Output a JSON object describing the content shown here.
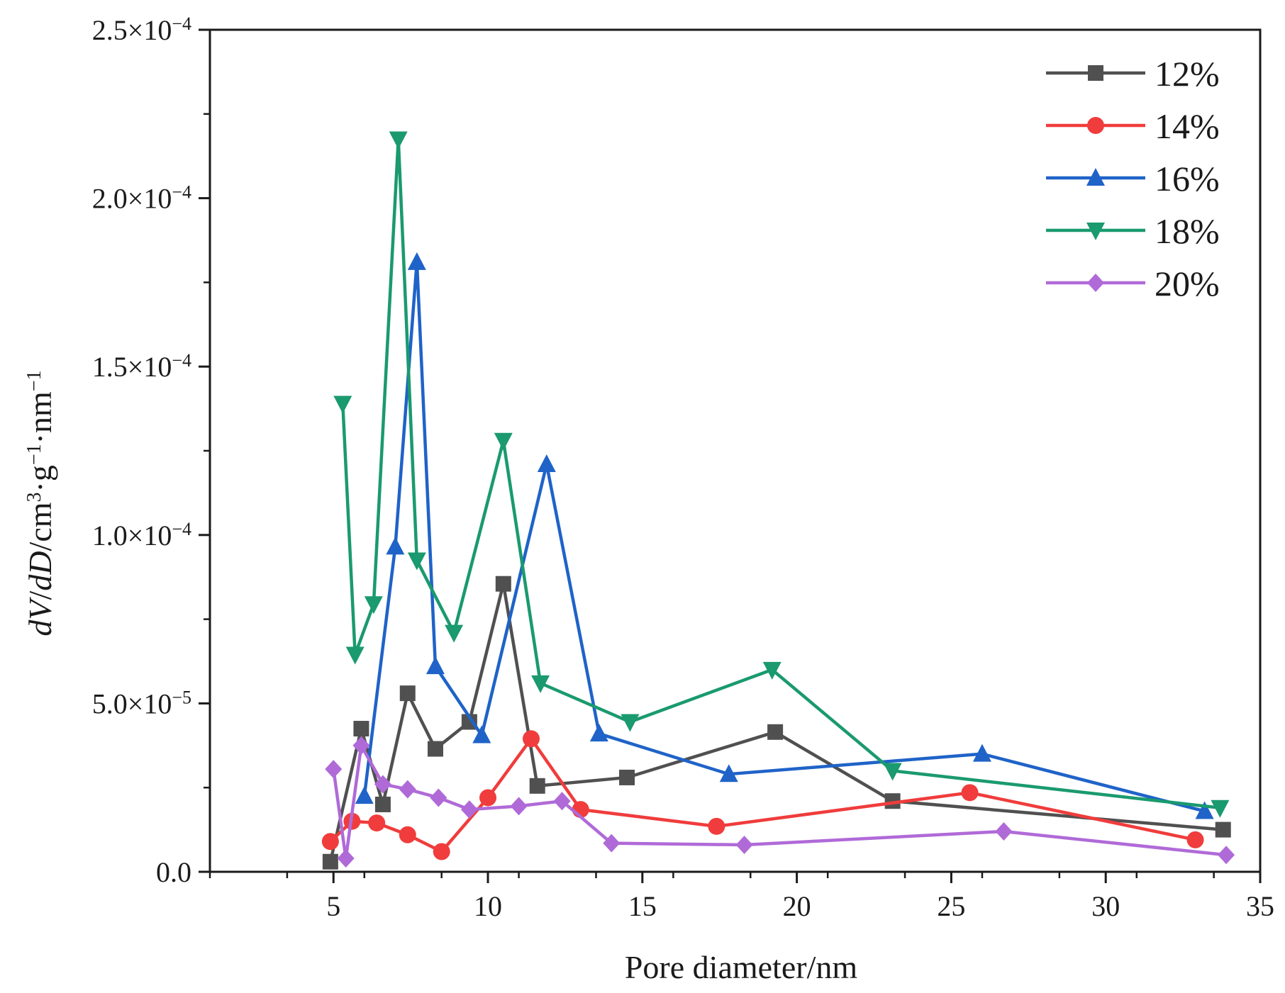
{
  "chart_data": {
    "type": "line",
    "xlabel": "Pore diameter/nm",
    "ylabel": "dV/dD/cm³·g⁻¹·nm⁻¹",
    "ylabel_parts": {
      "italic1": "dV",
      "slash1": "/",
      "italic2": "dD",
      "unit": "/cm",
      "unit_sup1": "3",
      "unit_mid": "·g",
      "unit_sup2": "−1",
      "unit_mid2": "·nm",
      "unit_sup3": "−1"
    },
    "xlim": [
      1,
      35
    ],
    "ylim": [
      0,
      0.00025
    ],
    "x_ticks": [
      5,
      10,
      15,
      20,
      25,
      30,
      35
    ],
    "x_tick_labels": [
      "5",
      "10",
      "15",
      "20",
      "25",
      "30",
      "35"
    ],
    "y_ticks": [
      0,
      5e-05,
      0.0001,
      0.00015,
      0.0002,
      0.00025
    ],
    "y_tick_labels": [
      {
        "mantissa": "0.0",
        "exp": ""
      },
      {
        "mantissa": "5.0×10",
        "exp": "−5"
      },
      {
        "mantissa": "1.0×10",
        "exp": "−4"
      },
      {
        "mantissa": "1.5×10",
        "exp": "−4"
      },
      {
        "mantissa": "2.0×10",
        "exp": "−4"
      },
      {
        "mantissa": "2.5×10",
        "exp": "−4"
      }
    ],
    "legend_position": "top-right",
    "series": [
      {
        "name": "12%",
        "color": "#505050",
        "marker": "square",
        "x": [
          4.9,
          5.9,
          6.6,
          7.4,
          8.3,
          9.4,
          10.5,
          11.6,
          14.5,
          19.3,
          23.1,
          33.8
        ],
        "y": [
          3e-06,
          4.25e-05,
          2e-05,
          5.3e-05,
          3.65e-05,
          4.45e-05,
          8.55e-05,
          2.55e-05,
          2.8e-05,
          4.15e-05,
          2.1e-05,
          1.25e-05
        ]
      },
      {
        "name": "14%",
        "color": "#f03c3c",
        "marker": "circle",
        "x": [
          4.9,
          5.6,
          6.4,
          7.4,
          8.5,
          10.0,
          11.4,
          13.0,
          17.4,
          25.6,
          32.9
        ],
        "y": [
          9e-06,
          1.5e-05,
          1.45e-05,
          1.1e-05,
          6e-06,
          2.2e-05,
          3.95e-05,
          1.85e-05,
          1.35e-05,
          2.35e-05,
          9.5e-06
        ]
      },
      {
        "name": "16%",
        "color": "#1f63c8",
        "marker": "triangle-up",
        "x": [
          6.0,
          7.0,
          7.7,
          8.3,
          9.8,
          11.9,
          13.6,
          17.8,
          26.0,
          33.2
        ],
        "y": [
          2.25e-05,
          9.65e-05,
          0.000181,
          6.1e-05,
          4.05e-05,
          0.000121,
          4.1e-05,
          2.9e-05,
          3.5e-05,
          1.8e-05
        ]
      },
      {
        "name": "18%",
        "color": "#1a9a6e",
        "marker": "triangle-down",
        "x": [
          5.3,
          5.7,
          6.3,
          7.1,
          7.7,
          8.9,
          10.5,
          11.7,
          14.6,
          19.2,
          23.1,
          33.7
        ],
        "y": [
          0.000139,
          6.45e-05,
          7.95e-05,
          0.0002175,
          9.25e-05,
          7.1e-05,
          0.000128,
          5.6e-05,
          4.45e-05,
          6e-05,
          3e-05,
          1.9e-05
        ]
      },
      {
        "name": "20%",
        "color": "#b06ad8",
        "marker": "diamond",
        "x": [
          5.0,
          5.4,
          5.9,
          6.6,
          7.4,
          8.4,
          9.4,
          11.0,
          12.4,
          14.0,
          18.3,
          26.7,
          33.9
        ],
        "y": [
          3.05e-05,
          4e-06,
          3.75e-05,
          2.6e-05,
          2.45e-05,
          2.2e-05,
          1.85e-05,
          1.95e-05,
          2.1e-05,
          8.5e-06,
          8e-06,
          1.2e-05,
          5e-06
        ]
      }
    ]
  }
}
